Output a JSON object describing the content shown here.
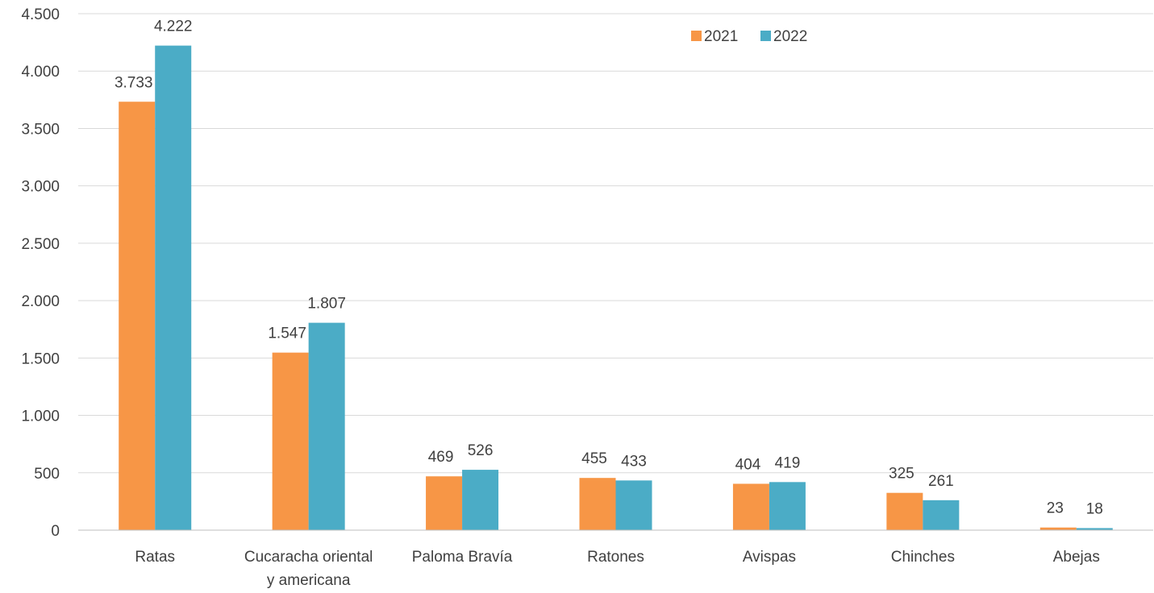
{
  "chart_data": {
    "type": "bar",
    "title": "",
    "xlabel": "",
    "ylabel": "",
    "categories": [
      [
        "Ratas"
      ],
      [
        "Cucaracha oriental",
        "y americana"
      ],
      [
        "Paloma Bravía"
      ],
      [
        "Ratones"
      ],
      [
        "Avispas"
      ],
      [
        "Chinches"
      ],
      [
        "Abejas"
      ]
    ],
    "series": [
      {
        "name": "2021",
        "color": "#f79646",
        "values": [
          3733,
          1547,
          469,
          455,
          404,
          325,
          23
        ],
        "labels": [
          "3.733",
          "1.547",
          "469",
          "455",
          "404",
          "325",
          "23"
        ]
      },
      {
        "name": "2022",
        "color": "#4bacc6",
        "values": [
          4222,
          1807,
          526,
          433,
          419,
          261,
          18
        ],
        "labels": [
          "4.222",
          "1.807",
          "526",
          "433",
          "419",
          "261",
          "18"
        ]
      }
    ],
    "ylim": [
      0,
      4500
    ],
    "yticks": [
      0,
      500,
      1000,
      1500,
      2000,
      2500,
      3000,
      3500,
      4000,
      4500
    ],
    "ytick_labels": [
      "0",
      "500",
      "1.000",
      "1.500",
      "2.000",
      "2.500",
      "3.000",
      "3.500",
      "4.000",
      "4.500"
    ],
    "grid": true,
    "legend_position": "top-right"
  }
}
